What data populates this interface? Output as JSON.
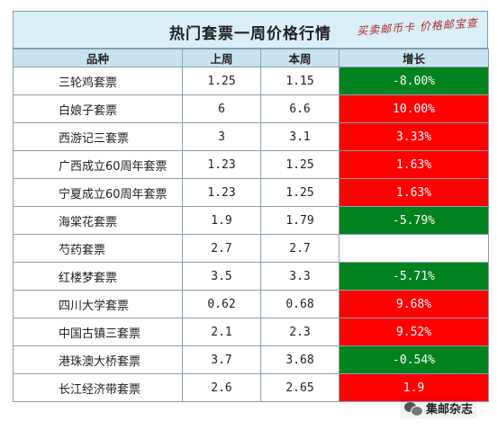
{
  "title": "热门套票一周价格行情",
  "brand": "买卖邮币卡 价格邮宝查",
  "headers": {
    "name": "品种",
    "last": "上周",
    "this": "本周",
    "change": "增长"
  },
  "rows": [
    {
      "name": "三轮鸡套票",
      "last": "1.25",
      "this": "1.15",
      "change": "-8.00%",
      "trend": "down"
    },
    {
      "name": "白娘子套票",
      "last": "6",
      "this": "6.6",
      "change": "10.00%",
      "trend": "up"
    },
    {
      "name": "西游记三套票",
      "last": "3",
      "this": "3.1",
      "change": "3.33%",
      "trend": "up"
    },
    {
      "name": "广西成立60周年套票",
      "last": "1.23",
      "this": "1.25",
      "change": "1.63%",
      "trend": "up"
    },
    {
      "name": "宁夏成立60周年套票",
      "last": "1.23",
      "this": "1.25",
      "change": "1.63%",
      "trend": "up"
    },
    {
      "name": "海棠花套票",
      "last": "1.9",
      "this": "1.79",
      "change": "-5.79%",
      "trend": "down"
    },
    {
      "name": "芍药套票",
      "last": "2.7",
      "this": "2.7",
      "change": "",
      "trend": "flat"
    },
    {
      "name": "红楼梦套票",
      "last": "3.5",
      "this": "3.3",
      "change": "-5.71%",
      "trend": "down"
    },
    {
      "name": "四川大学套票",
      "last": "0.62",
      "this": "0.68",
      "change": "9.68%",
      "trend": "up"
    },
    {
      "name": "中国古镇三套票",
      "last": "2.1",
      "this": "2.3",
      "change": "9.52%",
      "trend": "up"
    },
    {
      "name": "港珠澳大桥套票",
      "last": "3.7",
      "this": "3.68",
      "change": "-0.54%",
      "trend": "down"
    },
    {
      "name": "长江经济带套票",
      "last": "2.6",
      "this": "2.65",
      "change": "1.9",
      "trend": "up"
    }
  ],
  "watermark": "集邮杂志",
  "colors": {
    "up": "#ff0000",
    "down": "#00821e",
    "header": "#c8e3f0",
    "title": "#d9eef7"
  }
}
